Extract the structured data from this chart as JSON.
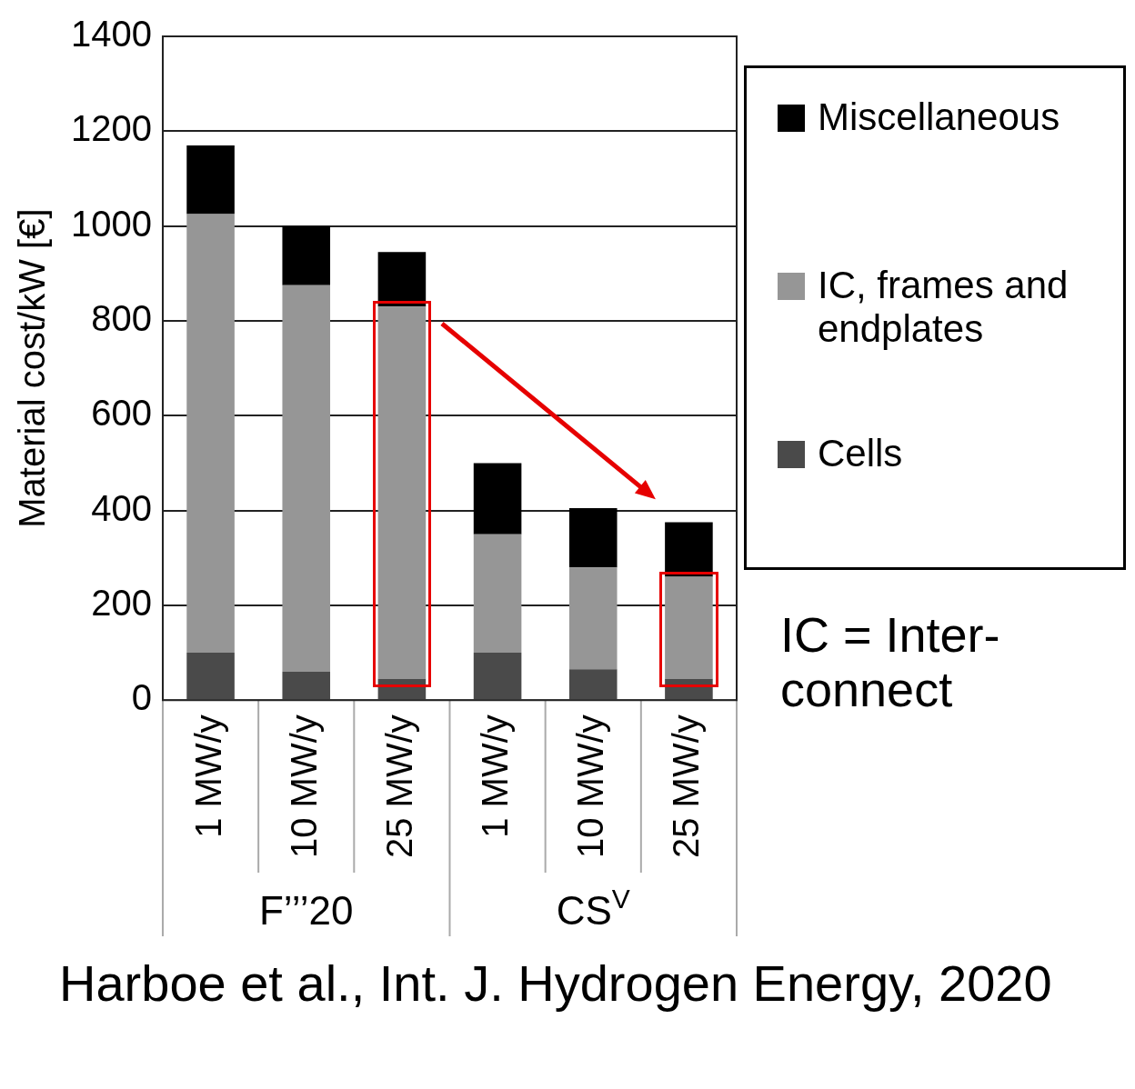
{
  "chart_data": {
    "type": "bar",
    "stacked": true,
    "ylabel": "Material cost/kW [€]",
    "categories": [
      "1 MW/y",
      "10 MW/y",
      "25 MW/y",
      "1 MW/y",
      "10 MW/y",
      "25 MW/y"
    ],
    "series": [
      {
        "name": "Cells",
        "color": "#4a4a4a",
        "values": [
          100,
          60,
          45,
          100,
          65,
          45
        ]
      },
      {
        "name": "IC, frames and endplates",
        "color": "#969696",
        "values": [
          925,
          815,
          785,
          250,
          215,
          215
        ]
      },
      {
        "name": "Miscellaneous",
        "color": "#000000",
        "values": [
          145,
          125,
          115,
          150,
          125,
          115
        ]
      }
    ],
    "ylim": [
      0,
      1400
    ],
    "yticks": [
      0,
      200,
      400,
      600,
      800,
      1000,
      1200,
      1400
    ],
    "grid": "y",
    "legend": "right",
    "annotations": [
      "F’’’20",
      "CS$^{V}$",
      "IC = Inter-connect",
      "Harboe et al., Int. J. Hydrogen Energy, 2020"
    ]
  }
}
